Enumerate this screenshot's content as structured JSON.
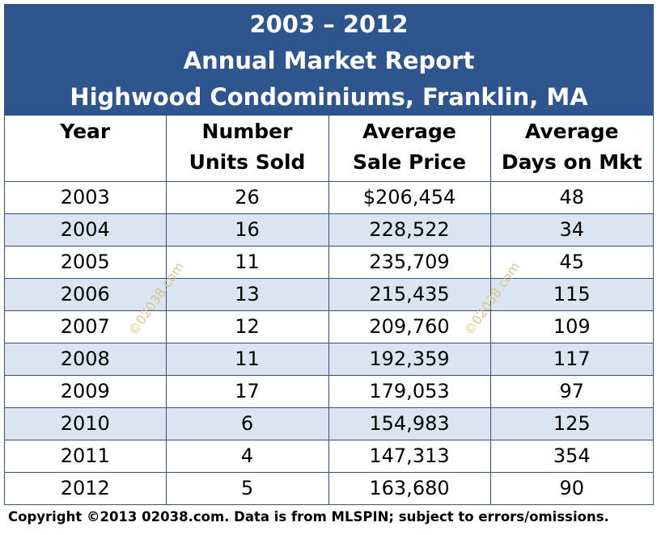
{
  "header": {
    "line1": "2003 – 2012",
    "line2": "Annual Market Report",
    "line3": "Highwood Condominiums, Franklin, MA"
  },
  "columns": [
    {
      "line1": "Year",
      "line2": ""
    },
    {
      "line1": "Number",
      "line2": "Units Sold"
    },
    {
      "line1": "Average",
      "line2": "Sale Price"
    },
    {
      "line1": "Average",
      "line2": "Days on Mkt"
    }
  ],
  "rows": [
    {
      "year": "2003",
      "units": "26",
      "price": "$206,454",
      "days": "48"
    },
    {
      "year": "2004",
      "units": "16",
      "price": "228,522",
      "days": "34"
    },
    {
      "year": "2005",
      "units": "11",
      "price": "235,709",
      "days": "45"
    },
    {
      "year": "2006",
      "units": "13",
      "price": "215,435",
      "days": "115"
    },
    {
      "year": "2007",
      "units": "12",
      "price": "209,760",
      "days": "109"
    },
    {
      "year": "2008",
      "units": "11",
      "price": "192,359",
      "days": "117"
    },
    {
      "year": "2009",
      "units": "17",
      "price": "179,053",
      "days": "97"
    },
    {
      "year": "2010",
      "units": "6",
      "price": "154,983",
      "days": "125"
    },
    {
      "year": "2011",
      "units": "4",
      "price": "147,313",
      "days": "354"
    },
    {
      "year": "2012",
      "units": "5",
      "price": "163,680",
      "days": "90"
    }
  ],
  "watermark": "©02038.com",
  "footer": "Copyright ©2013 02038.com.  Data is from MLSPIN; subject to errors/omissions.",
  "colors": {
    "header_bg": "#2f558f",
    "alt_row_bg": "#dbe4f1",
    "border": "#3b4f75",
    "watermark": "#d8c98e"
  }
}
